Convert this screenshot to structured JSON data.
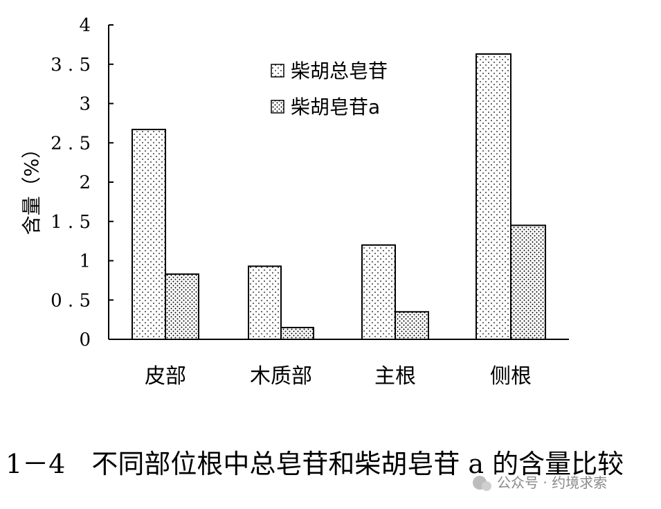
{
  "chart_data": {
    "type": "bar",
    "categories": [
      "皮部",
      "木质部",
      "主根",
      "侧根"
    ],
    "series": [
      {
        "name": "柴胡总皂苷",
        "values": [
          2.67,
          0.93,
          1.2,
          3.63
        ]
      },
      {
        "name": "柴胡皂苷a",
        "values": [
          0.83,
          0.15,
          0.35,
          1.45
        ]
      }
    ],
    "ylabel": "含量（%）",
    "xlabel": "",
    "ylim": [
      0,
      4
    ],
    "yticks": [
      "0",
      "0.5",
      "1",
      "1.5",
      "2",
      "2.5",
      "3",
      "3.5",
      "4"
    ],
    "legend_position": "top-center",
    "grid": false
  },
  "caption": "1－4　不同部位根中总皂苷和柴胡皂苷 a 的含量比较",
  "watermark": "公众号 · 约境求索"
}
